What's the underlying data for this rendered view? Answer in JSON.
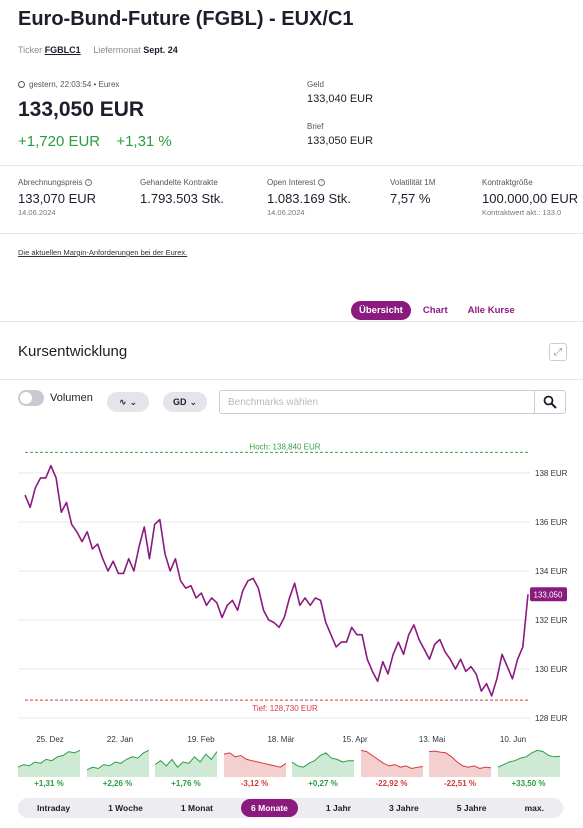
{
  "header": {
    "title": "Euro-Bund-Future (FGBL) - EUX/C1",
    "ticker_label": "Ticker",
    "ticker": "FGBLC1",
    "liefermonat_label": "Liefermonat",
    "liefermonat": "Sept. 24"
  },
  "quote": {
    "timestamp": "gestern, 22:03:54 • Eurex",
    "price": "133,050 EUR",
    "change_abs": "+1,720 EUR",
    "change_pct": "+1,31 %",
    "geld_label": "Geld",
    "geld": "133,040 EUR",
    "brief_label": "Brief",
    "brief": "133,050 EUR"
  },
  "stats": [
    {
      "label": "Abrechnungspreis",
      "value": "133,070 EUR",
      "sub": "14.06.2024",
      "info": true
    },
    {
      "label": "Gehandelte Kontrakte",
      "value": "1.793.503 Stk.",
      "sub": "",
      "info": false
    },
    {
      "label": "Open Interest",
      "value": "1.083.169 Stk.",
      "sub": "14.06.2024",
      "info": true
    },
    {
      "label": "Volatilität 1M",
      "value": "7,57 %",
      "sub": "",
      "info": false
    },
    {
      "label": "Kontraktgröße",
      "value": "100.000,00 EUR",
      "sub": "Kontraktwert akt.: 133.0",
      "info": false
    }
  ],
  "margin_link": "Die aktuellen Margin-Anforderungen bei der Eurex.",
  "tabs": [
    "Übersicht",
    "Chart",
    "Alle Kurse"
  ],
  "active_tab": 0,
  "section_title": "Kursentwicklung",
  "toolbar": {
    "volume_label": "Volumen",
    "line_pill": "∿",
    "gd_pill": "GD",
    "benchmark_placeholder": "Benchmarks wählen"
  },
  "colors": {
    "accent": "#8a1a7d",
    "positive": "#2a9d3f",
    "negative": "#d43a3a",
    "high_line": "#3aa04a",
    "low_line": "#d43a3a"
  },
  "chart_data": {
    "type": "line",
    "high_label": "Hoch: 138,840 EUR",
    "low_label": "Tief: 128,730 EUR",
    "high": 138.84,
    "low": 128.73,
    "last_label": "133,050",
    "last": 133.05,
    "ylim": [
      128,
      138.8
    ],
    "y_ticks": [
      128,
      130,
      132,
      134,
      136,
      138
    ],
    "y_tick_labels": [
      "128 EUR",
      "130 EUR",
      "132 EUR",
      "134 EUR",
      "136 EUR",
      "138 EUR"
    ],
    "x_tick_labels": [
      "25. Dez",
      "22. Jan",
      "19. Feb",
      "18. Mär",
      "15. Apr",
      "13. Mai",
      "10. Jun"
    ],
    "values": [
      137.1,
      136.6,
      137.4,
      137.8,
      137.8,
      138.3,
      137.8,
      136.4,
      136.8,
      135.9,
      135.6,
      135.2,
      135.6,
      134.9,
      135.1,
      134.5,
      134.0,
      134.4,
      133.9,
      133.9,
      134.5,
      134.0,
      135.0,
      135.8,
      134.5,
      135.9,
      136.1,
      134.7,
      134.0,
      134.5,
      133.6,
      133.3,
      133.4,
      132.9,
      133.1,
      132.6,
      132.9,
      132.7,
      132.1,
      132.6,
      132.8,
      132.4,
      133.2,
      133.6,
      133.7,
      133.3,
      132.4,
      132.0,
      131.9,
      131.7,
      132.1,
      132.9,
      133.5,
      132.6,
      132.9,
      132.6,
      132.9,
      132.8,
      131.9,
      131.4,
      130.9,
      131.1,
      131.1,
      131.7,
      131.4,
      131.4,
      130.4,
      129.9,
      129.5,
      130.3,
      129.8,
      130.6,
      131.1,
      130.6,
      131.4,
      131.8,
      131.2,
      130.8,
      130.4,
      131.0,
      131.2,
      130.7,
      130.4,
      130.0,
      130.4,
      129.9,
      130.1,
      129.8,
      129.1,
      129.4,
      128.9,
      129.6,
      130.6,
      130.1,
      129.6,
      130.4,
      130.9,
      133.05
    ]
  },
  "periods": [
    {
      "label": "Intraday",
      "change": "+1,31 %",
      "positive": true,
      "spark": [
        0.3,
        0.4,
        0.35,
        0.5,
        0.45,
        0.6,
        0.55,
        0.7,
        0.75,
        0.9,
        0.85,
        0.95
      ]
    },
    {
      "label": "1 Woche",
      "change": "+2,26 %",
      "positive": true,
      "spark": [
        0.2,
        0.3,
        0.25,
        0.4,
        0.35,
        0.5,
        0.45,
        0.6,
        0.7,
        0.65,
        0.85,
        0.95
      ]
    },
    {
      "label": "1 Monat",
      "change": "+1,76 %",
      "positive": true,
      "spark": [
        0.4,
        0.55,
        0.35,
        0.6,
        0.3,
        0.5,
        0.45,
        0.7,
        0.5,
        0.8,
        0.6,
        0.9
      ]
    },
    {
      "label": "6 Monate",
      "change": "-3,12 %",
      "positive": false,
      "spark": [
        0.8,
        0.85,
        0.7,
        0.75,
        0.6,
        0.55,
        0.5,
        0.45,
        0.4,
        0.35,
        0.3,
        0.45
      ]
    },
    {
      "label": "1 Jahr",
      "change": "+0,27 %",
      "positive": true,
      "spark": [
        0.5,
        0.35,
        0.3,
        0.45,
        0.55,
        0.75,
        0.85,
        0.65,
        0.6,
        0.5,
        0.55,
        0.55
      ]
    },
    {
      "label": "3 Jahre",
      "change": "-22,92 %",
      "positive": false,
      "spark": [
        0.95,
        0.9,
        0.75,
        0.6,
        0.45,
        0.35,
        0.4,
        0.3,
        0.35,
        0.25,
        0.3,
        0.32
      ]
    },
    {
      "label": "5 Jahre",
      "change": "-22,51 %",
      "positive": false,
      "spark": [
        0.9,
        0.92,
        0.88,
        0.85,
        0.7,
        0.5,
        0.35,
        0.3,
        0.35,
        0.25,
        0.3,
        0.28
      ]
    },
    {
      "label": "max.",
      "change": "+33,50 %",
      "positive": true,
      "spark": [
        0.3,
        0.4,
        0.5,
        0.55,
        0.65,
        0.7,
        0.85,
        0.95,
        0.9,
        0.75,
        0.7,
        0.72
      ]
    }
  ],
  "active_period": 3
}
